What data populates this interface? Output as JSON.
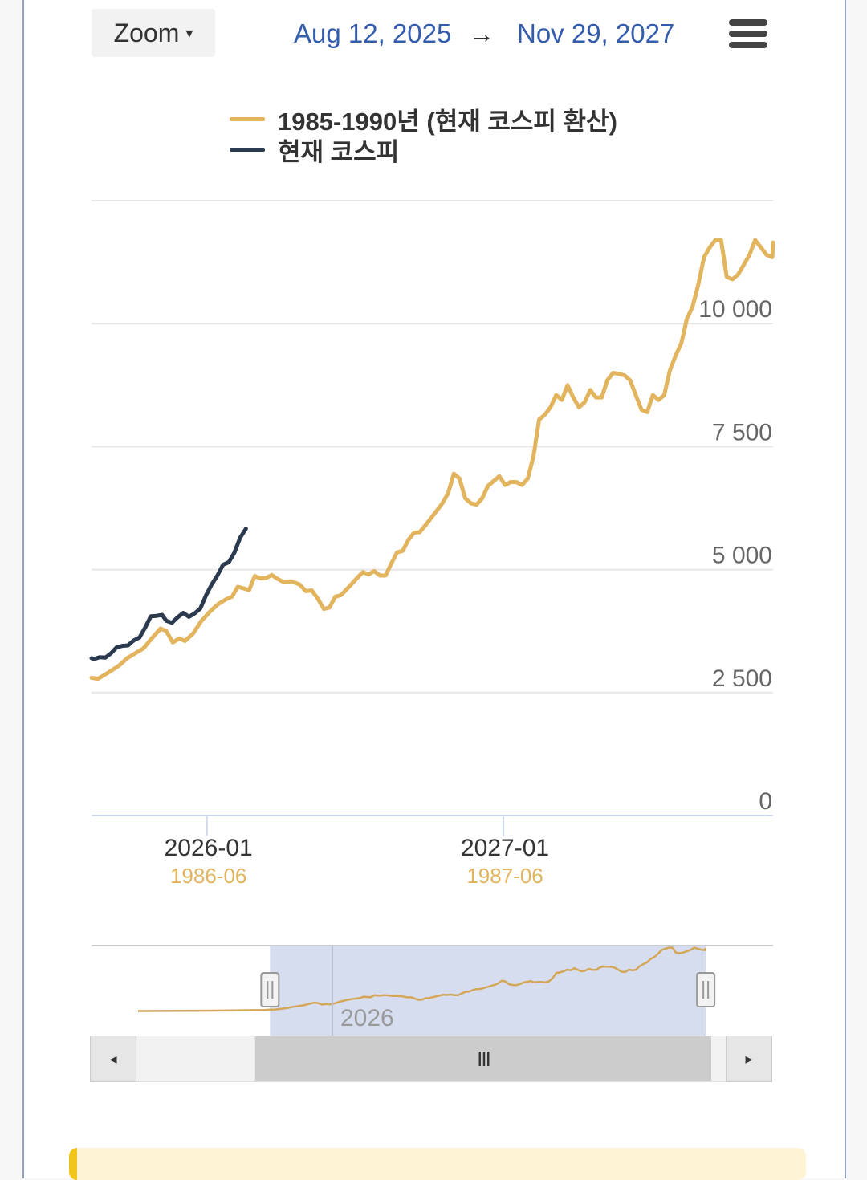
{
  "toolbar": {
    "zoom_label": "Zoom",
    "zoom_caret": "▾",
    "range_from": "Aug 12, 2025",
    "range_arrow": "→",
    "range_to": "Nov 29, 2027",
    "menu_icon": "hamburger-menu-icon"
  },
  "colors": {
    "series_1985": "#e2b45e",
    "series_current": "#2b3a4e",
    "axis_primary_label": "#333333",
    "axis_secondary_label": "#e2b45e",
    "navigator_mask": "#c8d2e8",
    "link_blue": "#335cad"
  },
  "legend": [
    {
      "label": "1985-1990년 (현재 코스피 환산)",
      "color": "#e2b45e"
    },
    {
      "label": "현재 코스피",
      "color": "#2b3a4e"
    }
  ],
  "navigator": {
    "tick_label": "2026",
    "scroll_left_icon": "◂",
    "scroll_right_icon": "▸",
    "scroll_thumb_grip": "III"
  },
  "chart_data": {
    "type": "line",
    "x_axis": {
      "type": "datetime",
      "range": [
        "2025-08-12",
        "2027-11-29"
      ],
      "primary_ticks": [
        "2026-01",
        "2027-01"
      ],
      "secondary_ticks": [
        "1986-06",
        "1987-06"
      ]
    },
    "y_axis": {
      "range": [
        0,
        12500
      ],
      "ticks": [
        0,
        2500,
        5000,
        7500,
        10000
      ],
      "tick_labels": [
        "0",
        "2 500",
        "5 000",
        "7 500",
        "10 000"
      ],
      "gridlines": true
    },
    "legend_position": "top",
    "series": [
      {
        "name": "1985-1990년 (현재 코스피 환산)",
        "color": "#e2b45e",
        "points": [
          [
            "2025-08-12",
            2800
          ],
          [
            "2025-08-20",
            2780
          ],
          [
            "2025-09-01",
            2900
          ],
          [
            "2025-09-15",
            3050
          ],
          [
            "2025-09-25",
            3200
          ],
          [
            "2025-10-05",
            3300
          ],
          [
            "2025-10-15",
            3400
          ],
          [
            "2025-10-25",
            3600
          ],
          [
            "2025-11-05",
            3800
          ],
          [
            "2025-11-12",
            3750
          ],
          [
            "2025-11-20",
            3520
          ],
          [
            "2025-11-28",
            3600
          ],
          [
            "2025-12-05",
            3550
          ],
          [
            "2025-12-15",
            3700
          ],
          [
            "2025-12-25",
            3950
          ],
          [
            "2026-01-05",
            4150
          ],
          [
            "2026-01-15",
            4300
          ],
          [
            "2026-01-25",
            4400
          ],
          [
            "2026-02-01",
            4450
          ],
          [
            "2026-02-08",
            4650
          ],
          [
            "2026-02-15",
            4620
          ],
          [
            "2026-02-22",
            4580
          ],
          [
            "2026-03-01",
            4870
          ],
          [
            "2026-03-08",
            4820
          ],
          [
            "2026-03-15",
            4830
          ],
          [
            "2026-03-22",
            4890
          ],
          [
            "2026-03-29",
            4810
          ],
          [
            "2026-04-05",
            4750
          ],
          [
            "2026-04-15",
            4760
          ],
          [
            "2026-04-25",
            4700
          ],
          [
            "2026-05-03",
            4560
          ],
          [
            "2026-05-10",
            4580
          ],
          [
            "2026-05-18",
            4400
          ],
          [
            "2026-05-25",
            4200
          ],
          [
            "2026-06-01",
            4230
          ],
          [
            "2026-06-08",
            4450
          ],
          [
            "2026-06-15",
            4480
          ],
          [
            "2026-06-25",
            4650
          ],
          [
            "2026-07-05",
            4830
          ],
          [
            "2026-07-12",
            4950
          ],
          [
            "2026-07-19",
            4900
          ],
          [
            "2026-07-26",
            4970
          ],
          [
            "2026-08-02",
            4880
          ],
          [
            "2026-08-09",
            4880
          ],
          [
            "2026-08-16",
            5120
          ],
          [
            "2026-08-23",
            5350
          ],
          [
            "2026-08-30",
            5380
          ],
          [
            "2026-09-06",
            5600
          ],
          [
            "2026-09-13",
            5750
          ],
          [
            "2026-09-20",
            5760
          ],
          [
            "2026-09-27",
            5900
          ],
          [
            "2026-10-04",
            6050
          ],
          [
            "2026-10-11",
            6200
          ],
          [
            "2026-10-18",
            6350
          ],
          [
            "2026-10-25",
            6550
          ],
          [
            "2026-11-01",
            6950
          ],
          [
            "2026-11-08",
            6850
          ],
          [
            "2026-11-15",
            6450
          ],
          [
            "2026-11-22",
            6350
          ],
          [
            "2026-11-29",
            6320
          ],
          [
            "2026-12-06",
            6450
          ],
          [
            "2026-12-13",
            6700
          ],
          [
            "2026-12-20",
            6800
          ],
          [
            "2026-12-27",
            6900
          ],
          [
            "2027-01-03",
            6720
          ],
          [
            "2027-01-10",
            6780
          ],
          [
            "2027-01-17",
            6780
          ],
          [
            "2027-01-24",
            6720
          ],
          [
            "2027-01-31",
            6850
          ],
          [
            "2027-02-07",
            7300
          ],
          [
            "2027-02-14",
            8050
          ],
          [
            "2027-02-21",
            8150
          ],
          [
            "2027-02-28",
            8300
          ],
          [
            "2027-03-07",
            8550
          ],
          [
            "2027-03-14",
            8450
          ],
          [
            "2027-03-21",
            8750
          ],
          [
            "2027-03-28",
            8500
          ],
          [
            "2027-04-04",
            8300
          ],
          [
            "2027-04-11",
            8400
          ],
          [
            "2027-04-18",
            8650
          ],
          [
            "2027-04-25",
            8500
          ],
          [
            "2027-05-02",
            8500
          ],
          [
            "2027-05-09",
            8850
          ],
          [
            "2027-05-16",
            9000
          ],
          [
            "2027-05-23",
            8980
          ],
          [
            "2027-05-30",
            8950
          ],
          [
            "2027-06-06",
            8850
          ],
          [
            "2027-06-13",
            8550
          ],
          [
            "2027-06-20",
            8250
          ],
          [
            "2027-06-27",
            8200
          ],
          [
            "2027-07-04",
            8550
          ],
          [
            "2027-07-11",
            8450
          ],
          [
            "2027-07-18",
            8550
          ],
          [
            "2027-07-25",
            9050
          ],
          [
            "2027-08-01",
            9350
          ],
          [
            "2027-08-08",
            9600
          ],
          [
            "2027-08-15",
            10100
          ],
          [
            "2027-08-22",
            10350
          ],
          [
            "2027-08-29",
            10800
          ],
          [
            "2027-09-05",
            11350
          ],
          [
            "2027-09-12",
            11550
          ],
          [
            "2027-09-19",
            11700
          ],
          [
            "2027-09-26",
            11700
          ],
          [
            "2027-10-03",
            10950
          ],
          [
            "2027-10-10",
            10900
          ],
          [
            "2027-10-17",
            11000
          ],
          [
            "2027-10-24",
            11200
          ],
          [
            "2027-10-31",
            11400
          ],
          [
            "2027-11-07",
            11700
          ],
          [
            "2027-11-14",
            11550
          ],
          [
            "2027-11-21",
            11400
          ],
          [
            "2027-11-28",
            11350
          ],
          [
            "2027-11-29",
            11650
          ]
        ]
      },
      {
        "name": "현재 코스피",
        "color": "#2b3a4e",
        "points": [
          [
            "2025-08-12",
            3200
          ],
          [
            "2025-08-15",
            3180
          ],
          [
            "2025-08-22",
            3220
          ],
          [
            "2025-08-29",
            3210
          ],
          [
            "2025-09-05",
            3300
          ],
          [
            "2025-09-12",
            3420
          ],
          [
            "2025-09-19",
            3450
          ],
          [
            "2025-09-26",
            3460
          ],
          [
            "2025-10-03",
            3560
          ],
          [
            "2025-10-10",
            3620
          ],
          [
            "2025-10-17",
            3820
          ],
          [
            "2025-10-24",
            4050
          ],
          [
            "2025-10-31",
            4060
          ],
          [
            "2025-11-07",
            4080
          ],
          [
            "2025-11-12",
            3960
          ],
          [
            "2025-11-19",
            3920
          ],
          [
            "2025-11-26",
            4030
          ],
          [
            "2025-12-03",
            4120
          ],
          [
            "2025-12-10",
            4040
          ],
          [
            "2025-12-17",
            4110
          ],
          [
            "2025-12-24",
            4210
          ],
          [
            "2025-12-31",
            4480
          ],
          [
            "2026-01-07",
            4700
          ],
          [
            "2026-01-14",
            4880
          ],
          [
            "2026-01-21",
            5100
          ],
          [
            "2026-01-28",
            5150
          ],
          [
            "2026-02-04",
            5350
          ],
          [
            "2026-02-11",
            5650
          ],
          [
            "2026-02-18",
            5830
          ]
        ]
      }
    ],
    "navigator": {
      "selected_range": [
        "2025-08-12",
        "2027-11-29"
      ],
      "axis_label": "2026"
    }
  }
}
